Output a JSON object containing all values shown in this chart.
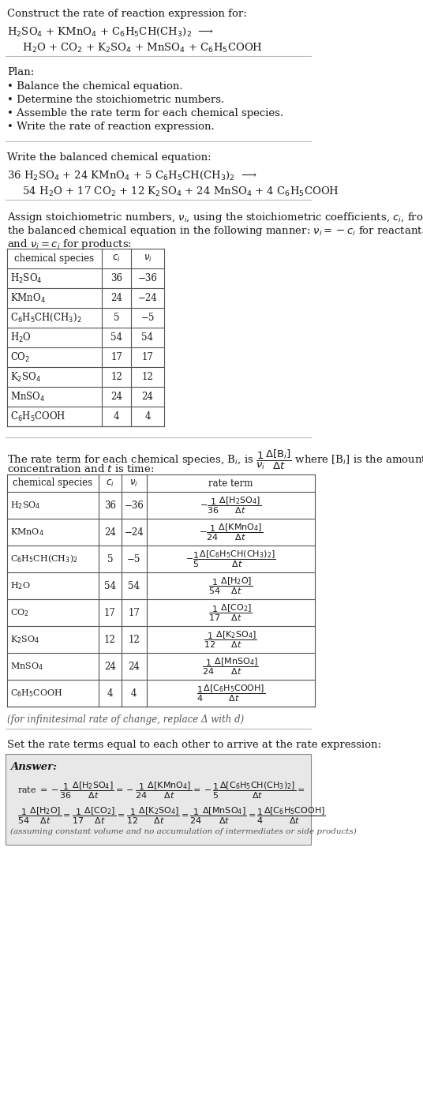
{
  "bg_color": "#ffffff",
  "text_color": "#1a1a1a",
  "table_border_color": "#888888",
  "title_text": "Construct the rate of reaction expression for:",
  "reaction_line1": "H$_2$SO$_4$ + KMnO$_4$ + C$_6$H$_5$CH(CH$_3$)$_2$  ⟶",
  "reaction_line2": "  H$_2$O + CO$_2$ + K$_2$SO$_4$ + MnSO$_4$ + C$_6$H$_5$COOH",
  "separator_color": "#bbbbbb",
  "plan_header": "Plan:",
  "plan_bullets": [
    "• Balance the chemical equation.",
    "• Determine the stoichiometric numbers.",
    "• Assemble the rate term for each chemical species.",
    "• Write the rate of reaction expression."
  ],
  "balanced_header": "Write the balanced chemical equation:",
  "balanced_line1": "36 H$_2$SO$_4$ + 24 KMnO$_4$ + 5 C$_6$H$_5$CH(CH$_3$)$_2$  ⟶",
  "balanced_line2": "  54 H$_2$O + 17 CO$_2$ + 12 K$_2$SO$_4$ + 24 MnSO$_4$ + 4 C$_6$H$_5$COOH",
  "stoich_assign_text1": "Assign stoichiometric numbers, $\\nu_i$, using the stoichiometric coefficients, $c_i$, from",
  "stoich_assign_text2": "the balanced chemical equation in the following manner: $\\nu_i = -c_i$ for reactants",
  "stoich_assign_text3": "and $\\nu_i = c_i$ for products:",
  "table1_headers": [
    "chemical species",
    "$c_i$",
    "$\\nu_i$"
  ],
  "table1_rows": [
    [
      "H$_2$SO$_4$",
      "36",
      "−36"
    ],
    [
      "KMnO$_4$",
      "24",
      "−24"
    ],
    [
      "C$_6$H$_5$CH(CH$_3$)$_2$",
      "5",
      "−5"
    ],
    [
      "H$_2$O",
      "54",
      "54"
    ],
    [
      "CO$_2$",
      "17",
      "17"
    ],
    [
      "K$_2$SO$_4$",
      "12",
      "12"
    ],
    [
      "MnSO$_4$",
      "24",
      "24"
    ],
    [
      "C$_6$H$_5$COOH",
      "4",
      "4"
    ]
  ],
  "rate_term_text1": "The rate term for each chemical species, B$_i$, is $\\dfrac{1}{\\nu_i}\\dfrac{\\Delta[\\mathrm{B}_i]}{\\Delta t}$ where [B$_i$] is the amount",
  "rate_term_text2": "concentration and $t$ is time:",
  "table2_headers": [
    "chemical species",
    "$c_i$",
    "$\\nu_i$",
    "rate term"
  ],
  "table2_rows": [
    [
      "H$_2$SO$_4$",
      "36",
      "−36",
      "$-\\dfrac{1}{36}\\dfrac{\\Delta[\\mathrm{H_2SO_4}]}{\\Delta t}$"
    ],
    [
      "KMnO$_4$",
      "24",
      "−24",
      "$-\\dfrac{1}{24}\\dfrac{\\Delta[\\mathrm{KMnO_4}]}{\\Delta t}$"
    ],
    [
      "C$_6$H$_5$CH(CH$_3$)$_2$",
      "5",
      "−5",
      "$-\\dfrac{1}{5}\\dfrac{\\Delta[\\mathrm{C_6H_5CH(CH_3)_2}]}{\\Delta t}$"
    ],
    [
      "H$_2$O",
      "54",
      "54",
      "$\\dfrac{1}{54}\\dfrac{\\Delta[\\mathrm{H_2O}]}{\\Delta t}$"
    ],
    [
      "CO$_2$",
      "17",
      "17",
      "$\\dfrac{1}{17}\\dfrac{\\Delta[\\mathrm{CO_2}]}{\\Delta t}$"
    ],
    [
      "K$_2$SO$_4$",
      "12",
      "12",
      "$\\dfrac{1}{12}\\dfrac{\\Delta[\\mathrm{K_2SO_4}]}{\\Delta t}$"
    ],
    [
      "MnSO$_4$",
      "24",
      "24",
      "$\\dfrac{1}{24}\\dfrac{\\Delta[\\mathrm{MnSO_4}]}{\\Delta t}$"
    ],
    [
      "C$_6$H$_5$COOH",
      "4",
      "4",
      "$\\dfrac{1}{4}\\dfrac{\\Delta[\\mathrm{C_6H_5COOH}]}{\\Delta t}$"
    ]
  ],
  "infinitesimal_note": "(for infinitesimal rate of change, replace Δ with d)",
  "set_rate_text": "Set the rate terms equal to each other to arrive at the rate expression:",
  "answer_box_color": "#e8e8e8",
  "answer_label": "Answer:",
  "answer_line1": "rate $= -\\dfrac{1}{36}\\dfrac{\\Delta[\\mathrm{H_2SO_4}]}{\\Delta t} = -\\dfrac{1}{24}\\dfrac{\\Delta[\\mathrm{KMnO_4}]}{\\Delta t} = -\\dfrac{1}{5}\\dfrac{\\Delta[\\mathrm{C_6H_5CH(CH_3)_2}]}{\\Delta t} =$",
  "answer_line2": "$\\dfrac{1}{54}\\dfrac{\\Delta[\\mathrm{H_2O}]}{\\Delta t} = \\dfrac{1}{17}\\dfrac{\\Delta[\\mathrm{CO_2}]}{\\Delta t} = \\dfrac{1}{12}\\dfrac{\\Delta[\\mathrm{K_2SO_4}]}{\\Delta t} = \\dfrac{1}{24}\\dfrac{\\Delta[\\mathrm{MnSO_4}]}{\\Delta t} = \\dfrac{1}{4}\\dfrac{\\Delta[\\mathrm{C_6H_5COOH}]}{\\Delta t}$",
  "answer_footnote": "(assuming constant volume and no accumulation of intermediates or side products)"
}
